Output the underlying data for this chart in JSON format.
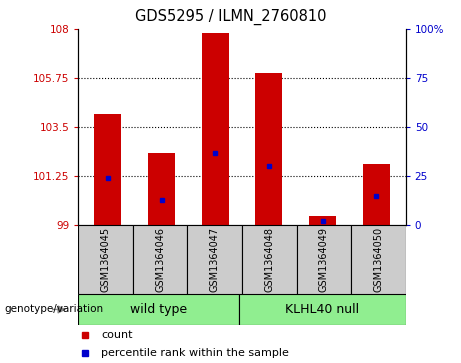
{
  "title": "GDS5295 / ILMN_2760810",
  "samples": [
    "GSM1364045",
    "GSM1364046",
    "GSM1364047",
    "GSM1364048",
    "GSM1364049",
    "GSM1364050"
  ],
  "bar_values": [
    104.1,
    102.3,
    107.8,
    106.0,
    99.4,
    101.8
  ],
  "percentile_values": [
    24,
    13,
    37,
    30,
    2,
    15
  ],
  "bar_color": "#cc0000",
  "percentile_color": "#0000cc",
  "ylim_left": [
    99,
    108
  ],
  "ylim_right": [
    0,
    100
  ],
  "yticks_left": [
    99,
    101.25,
    103.5,
    105.75,
    108
  ],
  "ytick_labels_left": [
    "99",
    "101.25",
    "103.5",
    "105.75",
    "108"
  ],
  "yticks_right": [
    0,
    25,
    50,
    75,
    100
  ],
  "ytick_labels_right": [
    "0",
    "25",
    "50",
    "75",
    "100%"
  ],
  "bar_width": 0.5,
  "background_color": "#ffffff",
  "grid_color": "#000000",
  "left_label_color": "#cc0000",
  "right_label_color": "#0000cc",
  "sample_bg_color": "#cccccc",
  "group_bg_color": "#90ee90",
  "legend_items": [
    "count",
    "percentile rank within the sample"
  ],
  "wild_type_label": "wild type",
  "klhl40_label": "KLHL40 null",
  "genotype_label": "genotype/variation"
}
